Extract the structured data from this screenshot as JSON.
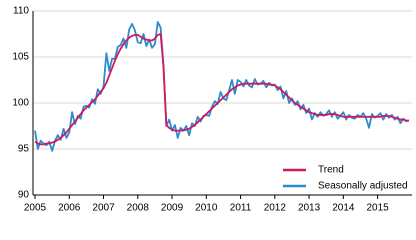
{
  "chart_data": {
    "type": "line",
    "categories": [
      "2005",
      null,
      null,
      null,
      null,
      null,
      null,
      null,
      null,
      null,
      null,
      null,
      "2006",
      null,
      null,
      null,
      null,
      null,
      null,
      null,
      null,
      null,
      null,
      null,
      "2007",
      null,
      null,
      null,
      null,
      null,
      null,
      null,
      null,
      null,
      null,
      null,
      "2008",
      null,
      null,
      null,
      null,
      null,
      null,
      null,
      null,
      null,
      null,
      null,
      "2009",
      null,
      null,
      null,
      null,
      null,
      null,
      null,
      null,
      null,
      null,
      null,
      "2010",
      null,
      null,
      null,
      null,
      null,
      null,
      null,
      null,
      null,
      null,
      null,
      "2011",
      null,
      null,
      null,
      null,
      null,
      null,
      null,
      null,
      null,
      null,
      null,
      "2012",
      null,
      null,
      null,
      null,
      null,
      null,
      null,
      null,
      null,
      null,
      null,
      "2013",
      null,
      null,
      null,
      null,
      null,
      null,
      null,
      null,
      null,
      null,
      null,
      "2014",
      null,
      null,
      null,
      null,
      null,
      null,
      null,
      null,
      null,
      null,
      null,
      "2015",
      null,
      null,
      null,
      null,
      null,
      null,
      null,
      null,
      null,
      null,
      null
    ],
    "series": [
      {
        "name": "Trend",
        "color": "#d1195d",
        "values": [
          95.8,
          95.6,
          95.5,
          95.5,
          95.6,
          95.6,
          95.7,
          95.8,
          96.0,
          96.2,
          96.5,
          96.8,
          97.2,
          97.6,
          98.0,
          98.4,
          98.8,
          99.2,
          99.5,
          99.8,
          100.1,
          100.4,
          100.8,
          101.2,
          101.6,
          102.2,
          103.0,
          103.8,
          104.6,
          105.3,
          105.9,
          106.4,
          106.8,
          107.1,
          107.3,
          107.4,
          107.4,
          107.2,
          107.0,
          106.9,
          106.8,
          106.8,
          107.0,
          107.4,
          107.5,
          104.0,
          97.6,
          97.3,
          97.1,
          97.0,
          97.0,
          97.0,
          97.0,
          97.1,
          97.2,
          97.4,
          97.6,
          97.9,
          98.2,
          98.5,
          98.8,
          99.1,
          99.4,
          99.7,
          100.0,
          100.3,
          100.6,
          100.9,
          101.2,
          101.5,
          101.7,
          101.9,
          102.0,
          102.1,
          102.1,
          102.1,
          102.1,
          102.1,
          102.1,
          102.1,
          102.1,
          102.1,
          102.0,
          102.0,
          101.9,
          101.7,
          101.5,
          101.2,
          100.9,
          100.6,
          100.3,
          100.0,
          99.8,
          99.6,
          99.4,
          99.2,
          99.0,
          98.9,
          98.8,
          98.7,
          98.7,
          98.7,
          98.7,
          98.8,
          98.8,
          98.8,
          98.7,
          98.6,
          98.5,
          98.5,
          98.5,
          98.5,
          98.5,
          98.5,
          98.5,
          98.5,
          98.5,
          98.5,
          98.5,
          98.5,
          98.5,
          98.5,
          98.6,
          98.6,
          98.6,
          98.5,
          98.4,
          98.3,
          98.2,
          98.2,
          98.1,
          98.1
        ]
      },
      {
        "name": "Seasonally adjusted",
        "color": "#2a8ccf",
        "values": [
          97.0,
          95.0,
          95.9,
          95.6,
          95.4,
          95.8,
          94.8,
          95.9,
          96.5,
          96.0,
          97.2,
          96.2,
          96.8,
          99.0,
          97.7,
          98.6,
          98.3,
          99.6,
          99.7,
          99.5,
          100.4,
          99.9,
          101.5,
          101.0,
          101.8,
          105.4,
          103.5,
          104.8,
          104.8,
          106.1,
          106.3,
          107.0,
          106.0,
          108.0,
          108.6,
          107.9,
          106.6,
          106.5,
          107.5,
          106.2,
          106.9,
          106.0,
          106.4,
          108.8,
          108.2,
          104.1,
          97.5,
          98.2,
          97.0,
          97.6,
          96.2,
          97.3,
          97.0,
          97.5,
          96.5,
          97.8,
          97.5,
          98.5,
          98.0,
          98.6,
          98.7,
          98.6,
          99.6,
          100.2,
          99.9,
          101.2,
          100.5,
          100.3,
          101.4,
          102.5,
          101.0,
          102.5,
          102.3,
          101.8,
          102.5,
          101.9,
          101.7,
          102.6,
          102.0,
          102.1,
          102.4,
          101.7,
          102.2,
          101.9,
          102.0,
          101.4,
          101.8,
          100.5,
          101.3,
          100.0,
          100.5,
          99.8,
          100.2,
          99.3,
          99.8,
          98.9,
          99.4,
          98.2,
          98.9,
          98.5,
          99.0,
          98.6,
          98.8,
          99.2,
          98.5,
          99.0,
          98.3,
          98.6,
          99.0,
          98.2,
          98.7,
          98.4,
          98.3,
          98.7,
          98.5,
          98.9,
          98.3,
          97.3,
          98.8,
          98.4,
          98.6,
          98.9,
          98.2,
          98.8,
          98.4,
          98.7,
          98.2,
          98.5,
          97.8,
          98.3,
          98.0,
          98.1
        ]
      }
    ],
    "ylim": [
      90,
      110
    ],
    "yticks": [
      90,
      95,
      100,
      105,
      110
    ],
    "grid": true,
    "legend": "lower-right"
  }
}
